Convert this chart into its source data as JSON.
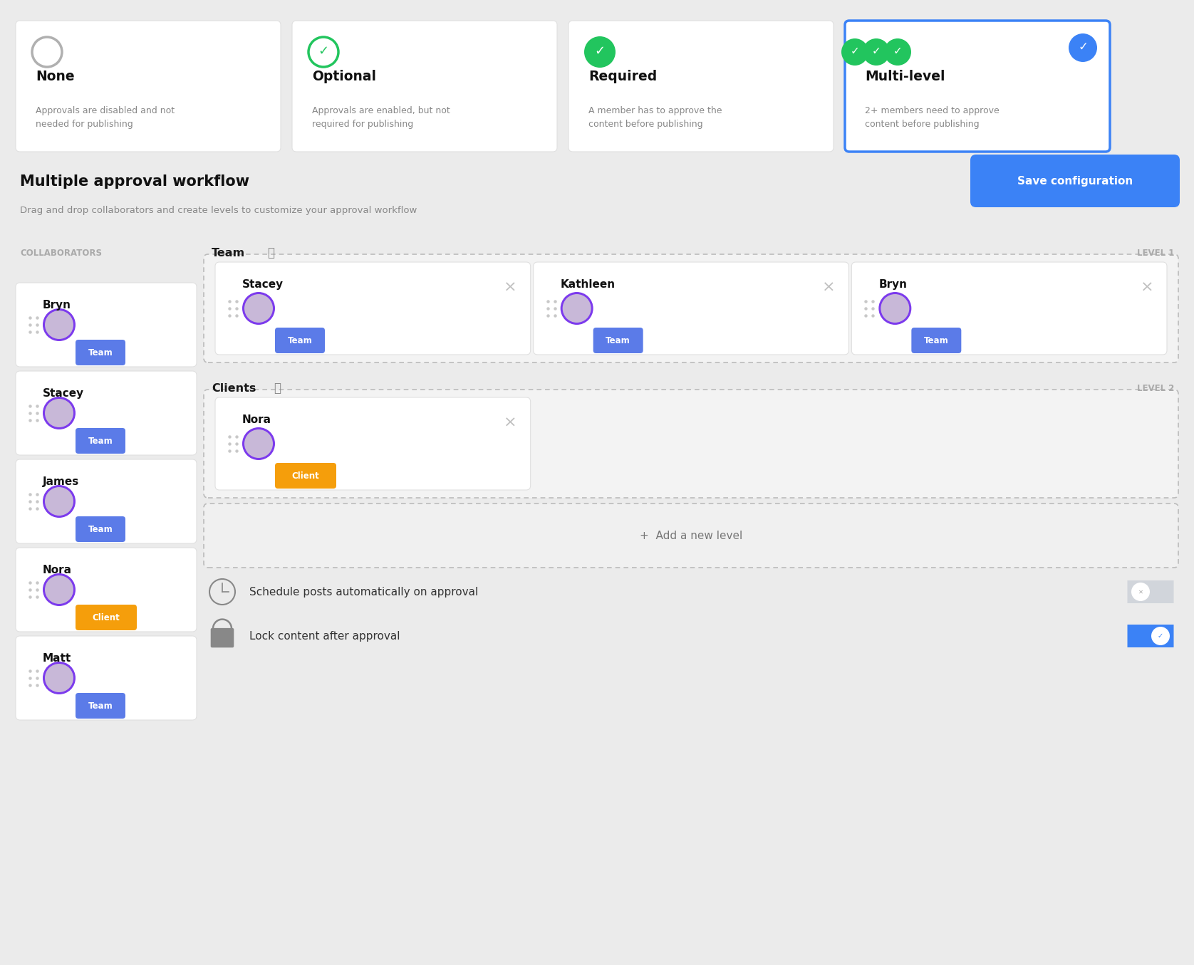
{
  "bg_color": "#ebebeb",
  "approval_cards": [
    {
      "title": "None",
      "desc": "Approvals are disabled and not\nneeded for publishing",
      "icon": "circle_empty",
      "selected": false
    },
    {
      "title": "Optional",
      "desc": "Approvals are enabled, but not\nrequired for publishing",
      "icon": "check_outline",
      "selected": false
    },
    {
      "title": "Required",
      "desc": "A member has to approve the\ncontent before publishing",
      "icon": "check_filled",
      "selected": false
    },
    {
      "title": "Multi-level",
      "desc": "2+ members need to approve\ncontent before publishing",
      "icon": "check_triple",
      "selected": true
    }
  ],
  "section_title": "Multiple approval workflow",
  "section_subtitle": "Drag and drop collaborators and create levels to customize your approval workflow",
  "save_btn_text": "Save configuration",
  "save_btn_color": "#3b82f6",
  "collaborators_label": "COLLABORATORS",
  "collaborators": [
    {
      "name": "Bryn",
      "tag": "Team",
      "tag_color": "#5b7be8"
    },
    {
      "name": "Stacey",
      "tag": "Team",
      "tag_color": "#5b7be8"
    },
    {
      "name": "James",
      "tag": "Team",
      "tag_color": "#5b7be8"
    },
    {
      "name": "Nora",
      "tag": "Client",
      "tag_color": "#f59e0b"
    },
    {
      "name": "Matt",
      "tag": "Team",
      "tag_color": "#5b7be8"
    }
  ],
  "level1_label": "Team",
  "level1_tag": "LEVEL 1",
  "level1_members": [
    {
      "name": "Stacey",
      "tag": "Team",
      "tag_color": "#5b7be8"
    },
    {
      "name": "Kathleen",
      "tag": "Team",
      "tag_color": "#5b7be8"
    },
    {
      "name": "Bryn",
      "tag": "Team",
      "tag_color": "#5b7be8"
    }
  ],
  "level2_label": "Clients",
  "level2_tag": "LEVEL 2",
  "level2_members": [
    {
      "name": "Nora",
      "tag": "Client",
      "tag_color": "#f59e0b"
    }
  ],
  "add_level_text": "+  Add a new level",
  "schedule_text": "Schedule posts automatically on approval",
  "schedule_enabled": false,
  "lock_text": "Lock content after approval",
  "lock_enabled": true,
  "toggle_on_color": "#3b82f6",
  "toggle_off_color": "#d1d5db",
  "green_check": "#22c55e",
  "blue_check": "#3b82f6",
  "card_shadow": "#d0d0d0"
}
